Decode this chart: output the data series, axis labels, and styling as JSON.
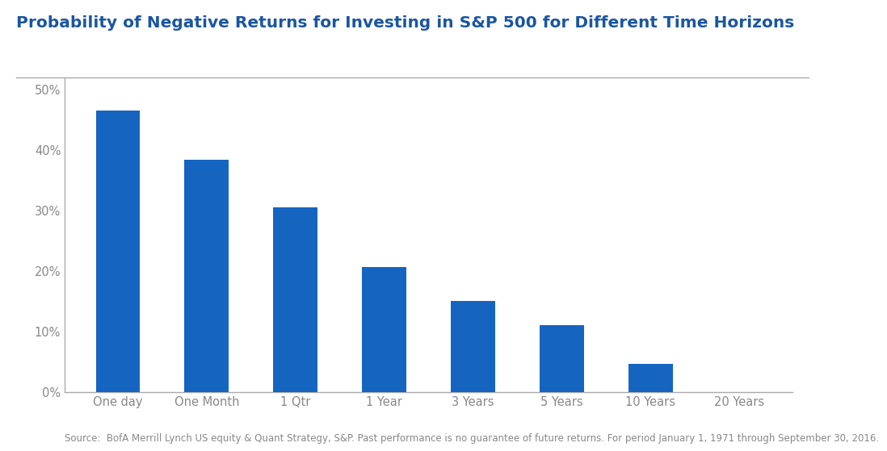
{
  "title": "Probability of Negative Returns for Investing in S&P 500 for Different Time Horizons",
  "categories": [
    "One day",
    "One Month",
    "1 Qtr",
    "1 Year",
    "3 Years",
    "5 Years",
    "10 Years",
    "20 Years"
  ],
  "values": [
    46.5,
    38.3,
    30.5,
    20.6,
    15.0,
    11.1,
    4.7,
    0.0
  ],
  "bar_color": "#1565C0",
  "yticks": [
    0,
    10,
    20,
    30,
    40,
    50
  ],
  "ytick_labels": [
    "0%",
    "10%",
    "20%",
    "30%",
    "40%",
    "50%"
  ],
  "ylim": [
    0,
    52
  ],
  "background_color": "#ffffff",
  "title_color": "#1A56A0",
  "title_fontsize": 14.5,
  "tick_fontsize": 10.5,
  "source_text": "Source:  BofA Merrill Lynch US equity & Quant Strategy, S&P. Past performance is no guarantee of future returns. For period January 1, 1971 through September 30, 2016.",
  "source_fontsize": 8.5,
  "source_color": "#888888",
  "spine_color": "#aaaaaa",
  "bar_width": 0.5
}
